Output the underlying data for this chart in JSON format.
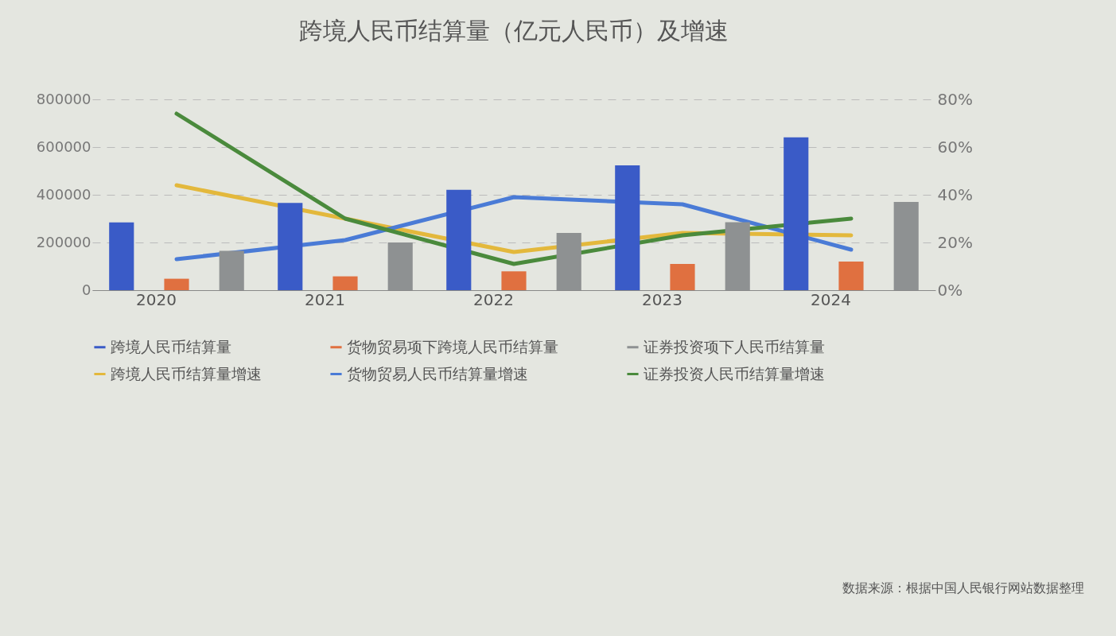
{
  "chart_data": {
    "type": "bar",
    "title": "跨境人民币结算量（亿元人民币）及增速",
    "categories": [
      "2020",
      "2021",
      "2022",
      "2023",
      "2024"
    ],
    "series": [
      {
        "name": "跨境人民币结算量",
        "color": "#3a5bc7",
        "values": [
          284000,
          366000,
          421000,
          523000,
          641000
        ]
      },
      {
        "name": "货物贸易项下跨境人民币结算量",
        "color": "#e07040",
        "values": [
          48000,
          58000,
          79000,
          110000,
          120000
        ]
      },
      {
        "name": "证券投资项下人民币结算量",
        "color": "#8e9192",
        "values": [
          165000,
          200000,
          240000,
          285000,
          370000
        ]
      },
      {
        "name": "跨境人民币结算量增速",
        "type": "line",
        "axis": "y2",
        "color": "#e3b83c",
        "values": [
          44,
          30,
          16,
          24,
          23
        ]
      },
      {
        "name": "货物贸易人民币结算量增速",
        "type": "line",
        "axis": "y2",
        "color": "#4a7bd6",
        "values": [
          13,
          21,
          39,
          36,
          17
        ]
      },
      {
        "name": "证券投资人民币结算量增速",
        "type": "line",
        "axis": "y2",
        "color": "#4a8a3c",
        "values": [
          74,
          30,
          11,
          23,
          30
        ]
      }
    ],
    "ylim": [
      0,
      800000
    ],
    "yticks": [
      0,
      200000,
      400000,
      600000,
      800000
    ],
    "y2lim": [
      0,
      80
    ],
    "y2ticks": [
      {
        "value": 0,
        "label": "0%"
      },
      {
        "value": 20,
        "label": "20%"
      },
      {
        "value": 40,
        "label": "40%"
      },
      {
        "value": 60,
        "label": "60%"
      },
      {
        "value": 80,
        "label": "80%"
      }
    ],
    "grid": "y",
    "legend": "bottom",
    "line_style": "solid",
    "annotations": [
      "数据来源：根据中国人民银行网站数据整理"
    ]
  }
}
